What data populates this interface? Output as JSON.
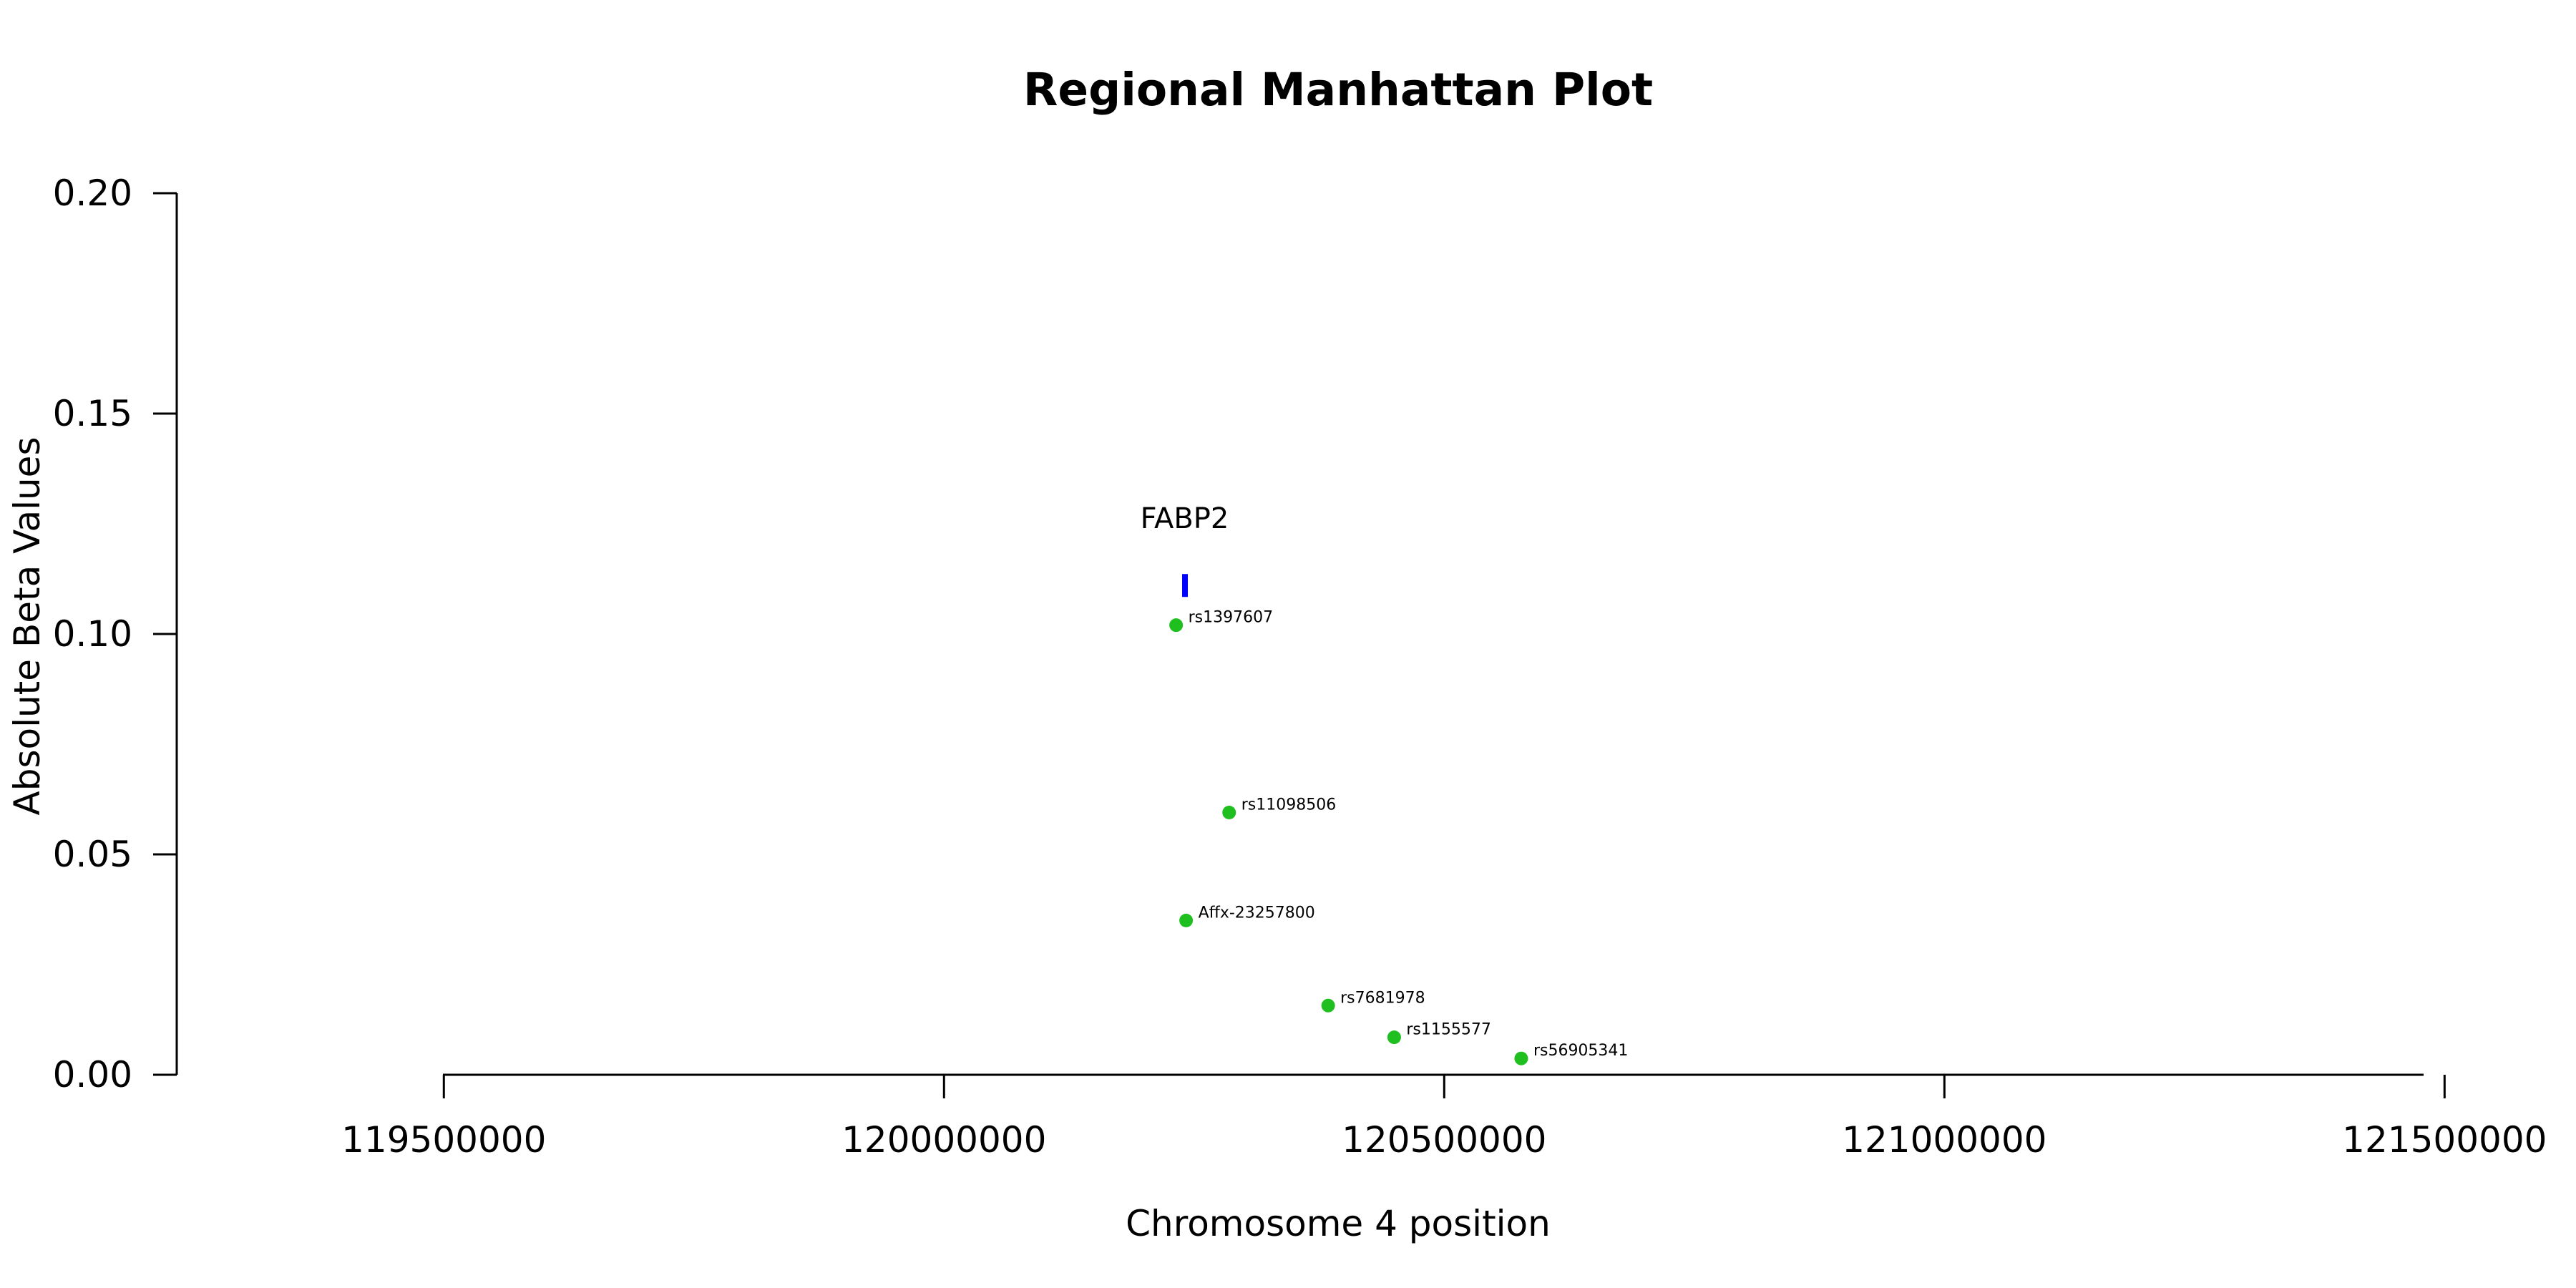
{
  "chart_data": {
    "type": "scatter",
    "title": "Regional Manhattan Plot",
    "xlabel": "Chromosome 4 position",
    "ylabel": "Absolute Beta Values",
    "xlim": [
      119233000,
      121567000
    ],
    "ylim": [
      0,
      0.2
    ],
    "x_ticks": [
      119500000,
      120000000,
      120500000,
      121000000,
      121500000
    ],
    "x_tick_labels": [
      "119500000",
      "120000000",
      "120500000",
      "121000000",
      "121500000"
    ],
    "y_ticks": [
      0,
      0.05,
      0.1,
      0.15,
      0.2
    ],
    "y_tick_labels": [
      "0.00",
      "0.05",
      "0.10",
      "0.15",
      "0.20"
    ],
    "grid": false,
    "point_color": "#1fbf1f",
    "gene_color": "#0000ff",
    "points": [
      {
        "label": "rs1397607",
        "x": 120232000,
        "y": 0.102
      },
      {
        "label": "rs11098506",
        "x": 120285000,
        "y": 0.0595
      },
      {
        "label": "Affx-23257800",
        "x": 120242000,
        "y": 0.035
      },
      {
        "label": "rs7681978",
        "x": 120384000,
        "y": 0.0157
      },
      {
        "label": "rs1155577",
        "x": 120450000,
        "y": 0.0085
      },
      {
        "label": "rs56905341",
        "x": 120577000,
        "y": 0.0037
      }
    ],
    "genes": [
      {
        "name": "FABP2",
        "start": 120238000,
        "end": 120243000,
        "y": 0.111
      }
    ]
  }
}
